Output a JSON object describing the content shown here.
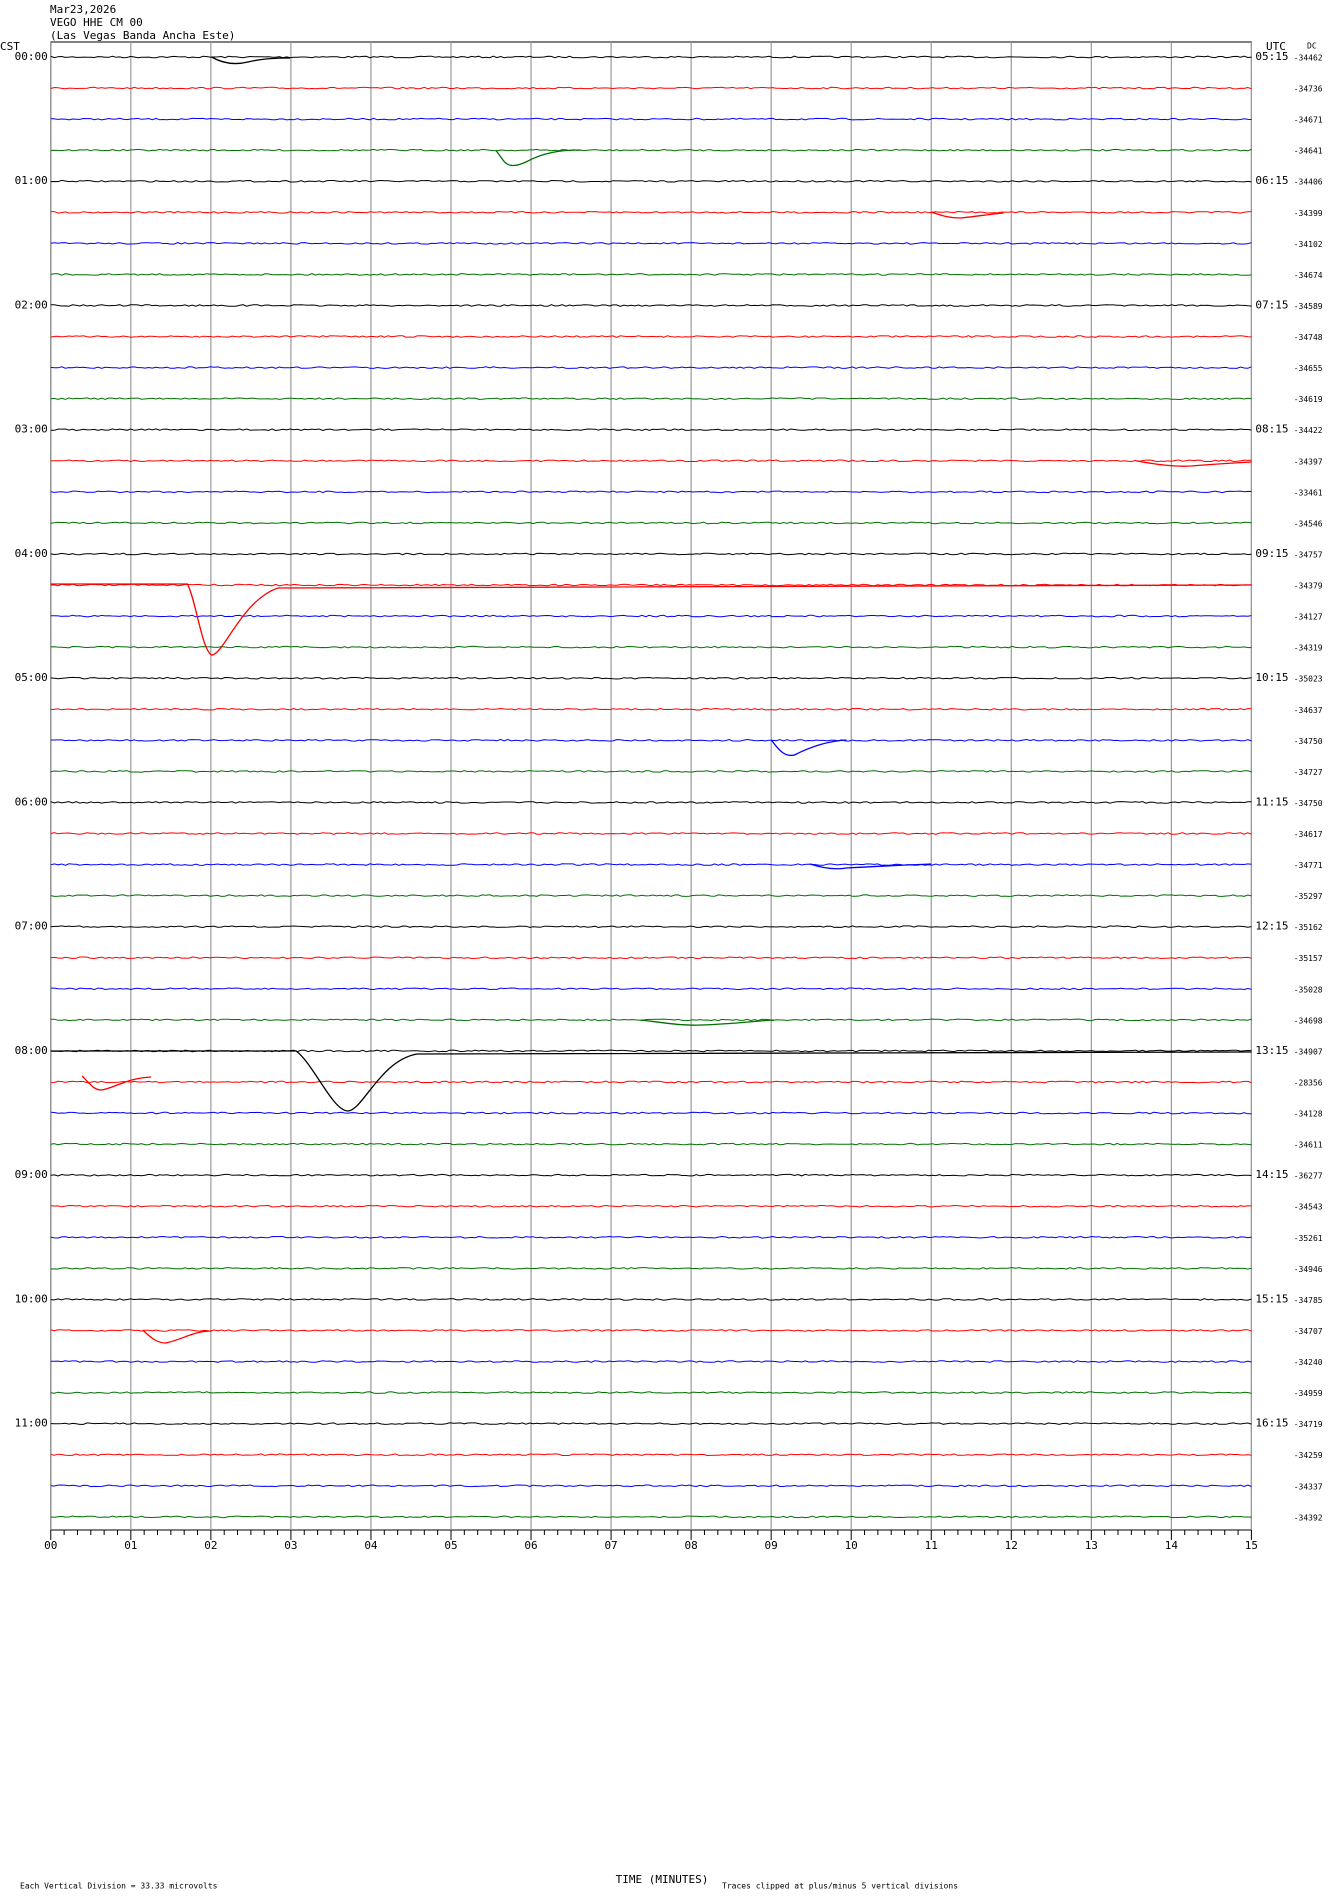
{
  "header": {
    "date": "Mar23,2026",
    "station": "VEGO HHE CM 00",
    "location": "(Las Vegas Banda Ancha Este)"
  },
  "left_zone": "CST",
  "right_zone": "UTC",
  "dc_label": "DC",
  "time_labels_cst": [
    "00:00",
    "01:00",
    "02:00",
    "03:00",
    "04:00",
    "05:00",
    "06:00",
    "07:00",
    "08:00",
    "09:00",
    "10:00",
    "11:00"
  ],
  "time_labels_utc": [
    "05:15",
    "06:15",
    "07:15",
    "08:15",
    "09:15",
    "10:15",
    "11:15",
    "12:15",
    "13:15",
    "14:15",
    "15:15",
    "16:15"
  ],
  "dc_values": [
    -34462,
    -34736,
    -34671,
    -34641,
    -34406,
    -34399,
    -34102,
    -34674,
    -34589,
    -34748,
    -34655,
    -34619,
    -34422,
    -34397,
    -33461,
    -34546,
    -34757,
    -34379,
    -34127,
    -34319,
    -35023,
    -34637,
    -34750,
    -34727,
    -34750,
    -34617,
    -34771,
    -35297,
    -35162,
    -35157,
    -35028,
    -34698,
    -34907,
    -28356,
    -34128,
    -34611,
    -36277,
    -34543,
    -35261,
    -34946,
    -34785,
    -34707,
    -34240,
    -34959,
    -34719,
    -34259,
    -34337,
    -34392
  ],
  "x_ticks": [
    "00",
    "01",
    "02",
    "03",
    "04",
    "05",
    "06",
    "07",
    "08",
    "09",
    "10",
    "11",
    "12",
    "13",
    "14",
    "15"
  ],
  "x_axis_label": "TIME (MINUTES)",
  "footer": {
    "division": "Each Vertical Division =   33.33 microvolts",
    "clipping": "Traces clipped at plus/minus 5 vertical divisions"
  },
  "trace_colors": [
    "#000000",
    "#ff0000",
    "#0000ff",
    "#007000"
  ]
}
